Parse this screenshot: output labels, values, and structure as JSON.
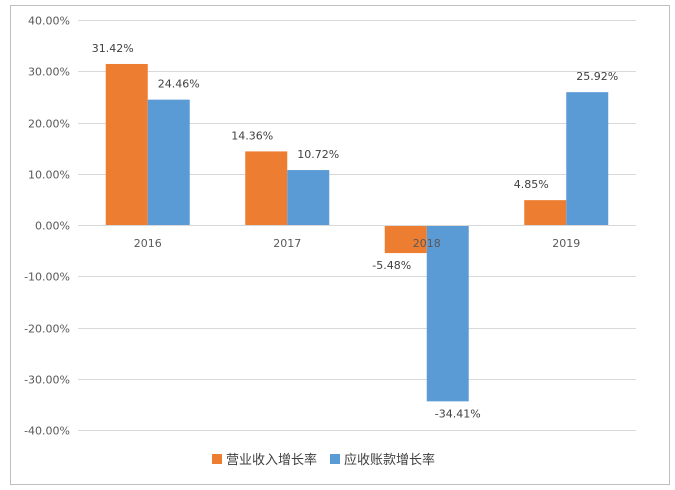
{
  "chart_data": {
    "type": "bar",
    "categories": [
      "2016",
      "2017",
      "2018",
      "2019"
    ],
    "series": [
      {
        "name": "营业收入增长率",
        "color": "#ed7d31",
        "values": [
          31.42,
          14.36,
          -5.48,
          4.85
        ],
        "labels": [
          "31.42%",
          "14.36%",
          "-5.48%",
          "4.85%"
        ]
      },
      {
        "name": "应收账款增长率",
        "color": "#5b9bd5",
        "values": [
          24.46,
          10.72,
          -34.41,
          25.92
        ],
        "labels": [
          "24.46%",
          "10.72%",
          "-34.41%",
          "25.92%"
        ]
      }
    ],
    "ylim": [
      -40,
      40
    ],
    "yticks": [
      40,
      30,
      20,
      10,
      0,
      -10,
      -20,
      -30,
      -40
    ],
    "ytick_labels": [
      "40.00%",
      "30.00%",
      "20.00%",
      "10.00%",
      "0.00%",
      "-10.00%",
      "-20.00%",
      "-30.00%",
      "-40.00%"
    ],
    "grid": true,
    "legend": "bottom-center",
    "title": "",
    "xlabel": "",
    "ylabel": ""
  }
}
